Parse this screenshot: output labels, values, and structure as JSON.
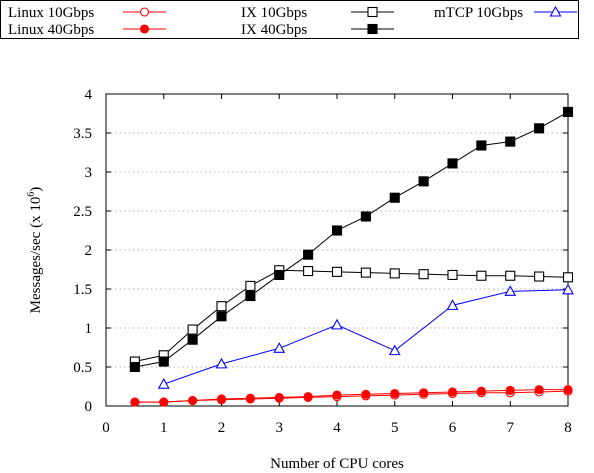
{
  "chart_data": {
    "type": "line",
    "xlabel": "Number of CPU cores",
    "ylabel_main": "Messages/sec (x 10",
    "ylabel_exp": "6",
    "ylabel_close": ")",
    "xlim": [
      0,
      8
    ],
    "ylim": [
      0,
      4
    ],
    "xticks": [
      0,
      1,
      2,
      3,
      4,
      5,
      6,
      7,
      8
    ],
    "yticks": [
      0,
      0.5,
      1,
      1.5,
      2,
      2.5,
      3,
      3.5,
      4
    ],
    "grid": true,
    "legend_position": "top",
    "series": [
      {
        "name": "Linux 10Gbps",
        "color": "#ff0000",
        "marker": "circle-open",
        "x": [
          0.5,
          1,
          1.5,
          2,
          2.5,
          3,
          3.5,
          4,
          4.5,
          5,
          5.5,
          6,
          6.5,
          7,
          7.5,
          8
        ],
        "y": [
          0.05,
          0.05,
          0.07,
          0.08,
          0.09,
          0.1,
          0.11,
          0.12,
          0.13,
          0.14,
          0.15,
          0.16,
          0.17,
          0.17,
          0.18,
          0.19
        ]
      },
      {
        "name": "Linux 40Gbps",
        "color": "#ff0000",
        "marker": "circle-filled",
        "x": [
          0.5,
          1,
          1.5,
          2,
          2.5,
          3,
          3.5,
          4,
          4.5,
          5,
          5.5,
          6,
          6.5,
          7,
          7.5,
          8
        ],
        "y": [
          0.05,
          0.05,
          0.07,
          0.09,
          0.1,
          0.11,
          0.12,
          0.14,
          0.15,
          0.16,
          0.17,
          0.18,
          0.19,
          0.2,
          0.21,
          0.21
        ]
      },
      {
        "name": "IX 10Gbps",
        "color": "#000000",
        "marker": "square-open",
        "x": [
          0.5,
          1,
          1.5,
          2,
          2.5,
          3,
          3.5,
          4,
          4.5,
          5,
          5.5,
          6,
          6.5,
          7,
          7.5,
          8
        ],
        "y": [
          0.57,
          0.65,
          0.98,
          1.28,
          1.54,
          1.74,
          1.73,
          1.72,
          1.71,
          1.7,
          1.69,
          1.68,
          1.67,
          1.67,
          1.66,
          1.65
        ]
      },
      {
        "name": "IX 40Gbps",
        "color": "#000000",
        "marker": "square-filled",
        "x": [
          0.5,
          1,
          1.5,
          2,
          2.5,
          3,
          3.5,
          4,
          4.5,
          5,
          5.5,
          6,
          6.5,
          7,
          7.5,
          8
        ],
        "y": [
          0.5,
          0.57,
          0.85,
          1.15,
          1.41,
          1.68,
          1.94,
          2.25,
          2.43,
          2.67,
          2.88,
          3.11,
          3.34,
          3.39,
          3.56,
          3.77
        ]
      },
      {
        "name": "mTCP 10Gbps",
        "color": "#0000ff",
        "marker": "triangle-open",
        "x": [
          1,
          2,
          3,
          4,
          5,
          6,
          7,
          8
        ],
        "y": [
          0.28,
          0.54,
          0.74,
          1.04,
          0.71,
          1.29,
          1.47,
          1.49
        ]
      }
    ]
  }
}
